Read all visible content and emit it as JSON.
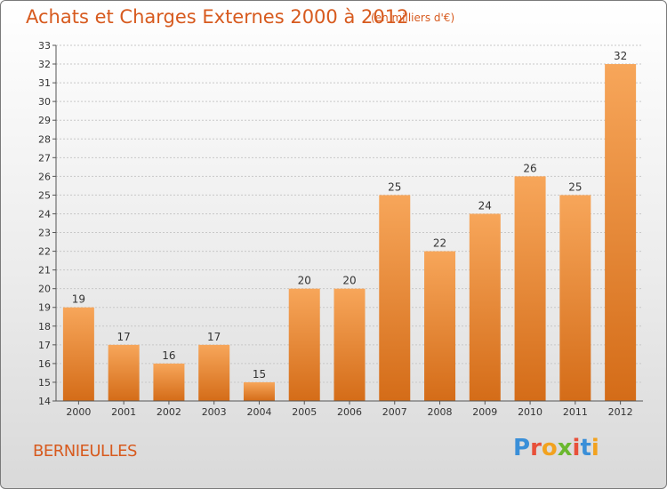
{
  "header": {
    "title": "Achats et Charges Externes 2000 à 2012",
    "subtitle": "(en milliers d'€)"
  },
  "footer": {
    "place_name": "BERNIEULLES",
    "logo_letters": [
      "P",
      "r",
      "o",
      "x",
      "i",
      "t",
      "i"
    ],
    "logo_colors": [
      "#3a8fd8",
      "#e8503a",
      "#f2a21f",
      "#6ab82e",
      "#e8503a",
      "#3a8fd8",
      "#f2a21f"
    ]
  },
  "chart_data": {
    "type": "bar",
    "categories": [
      "2000",
      "2001",
      "2002",
      "2003",
      "2004",
      "2005",
      "2006",
      "2007",
      "2008",
      "2009",
      "2010",
      "2011",
      "2012"
    ],
    "values": [
      19,
      17,
      16,
      17,
      15,
      20,
      20,
      25,
      22,
      24,
      26,
      25,
      32
    ],
    "ylim": [
      14,
      33
    ],
    "yticks": [
      14,
      15,
      16,
      17,
      18,
      19,
      20,
      21,
      22,
      23,
      24,
      25,
      26,
      27,
      28,
      29,
      30,
      31,
      32,
      33
    ],
    "grid": true,
    "bar_color_top": "#f7a65a",
    "bar_color_bottom": "#d46c18"
  }
}
